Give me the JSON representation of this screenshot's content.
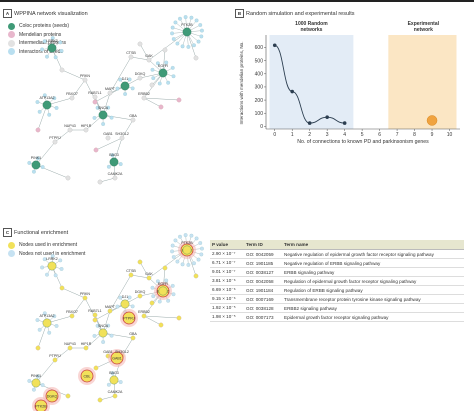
{
  "panelA": {
    "tag": "A",
    "title": "WPPINA network visualization",
    "legend": [
      {
        "label": "Coloc proteins (seeds)",
        "color": "#3f9a77"
      },
      {
        "label": "Mendelian proteins",
        "color": "#e8b7cc"
      },
      {
        "label": "Intermediate proteins",
        "color": "#e2e2e2"
      },
      {
        "label": "Interactors of seeds",
        "color": "#b9dff0"
      }
    ],
    "node_labels": [
      "PTK2B",
      "EGFR",
      "LRRK2",
      "SNCA",
      "ATP13A2",
      "DJ1",
      "PINK1",
      "BAG3",
      "CTSB",
      "GAK",
      "DGKQ",
      "ERBB2",
      "MAPT",
      "PRKN",
      "FBXO7",
      "RAB7L1",
      "GBA",
      "SH3GL2",
      "GAB1",
      "HIP1R",
      "NUP43",
      "PTPRJ",
      "CAMK2A"
    ]
  },
  "panelB": {
    "tag": "B",
    "title": "Random simulation and experimental results",
    "chart_data": {
      "type": "line",
      "xlabel": "No. of connections to known PD and parkinsonism genes",
      "ylabel": "Interactions with mendelian proteins, No.",
      "xlim": [
        0,
        10
      ],
      "ylim": [
        0,
        650
      ],
      "xticks": [
        "0",
        "1",
        "2",
        "3",
        "4",
        "5",
        "6",
        "7",
        "8",
        "9",
        "10"
      ],
      "yticks": [
        "0",
        "100",
        "200",
        "300",
        "400",
        "500",
        "600"
      ],
      "random_band_label": "1000 Random networks",
      "experimental_band_label": "Experimental network",
      "random_band": [
        -0.3,
        4.5
      ],
      "experimental_band": [
        6.5,
        10.4
      ],
      "series": [
        {
          "x": [
            0,
            1,
            2,
            3,
            4
          ],
          "y": [
            617,
            265,
            25,
            70,
            25
          ]
        }
      ],
      "experimental_point": {
        "x": 9,
        "y": 45
      },
      "random_color": "#e3ecf6",
      "experimental_color": "#fbe6c4"
    }
  },
  "panelC": {
    "tag": "C",
    "title": "Functional enrichment",
    "legend": [
      {
        "label": "Nodes used in enrichment",
        "color": "#f1e15a"
      },
      {
        "label": "Nodes not used in enrichment",
        "color": "#c6e2f2"
      }
    ],
    "highlight_labels": [
      "EGFR",
      "ERBB2",
      "PTPRJ",
      "GAB1",
      "CBL",
      "DGKQ",
      "PTK2B"
    ]
  },
  "table": {
    "headers": [
      "P value",
      "Term ID",
      "Term name"
    ],
    "rows": [
      [
        "2.90 × 10⁻⁷",
        "GO: 0042059",
        "Negative regulation of epidermal growth factor receptor signaling pathway"
      ],
      [
        "6.71 × 10⁻⁷",
        "GO: 1901185",
        "Negative regulation of ERBB signaling pathway"
      ],
      [
        "9.01 × 10⁻⁷",
        "GO: 0038127",
        "ERBB signaling pathway"
      ],
      [
        "3.81 × 10⁻⁶",
        "GO: 0042058",
        "Regulation of epidermal growth factor receptor signaling pathway"
      ],
      [
        "6.69 × 10⁻⁶",
        "GO: 1901184",
        "Regulation of ERBB signaling pathway"
      ],
      [
        "9.15 × 10⁻⁶",
        "GO: 0007169",
        "Transmembrane receptor protein tyrosine kinase signaling pathway"
      ],
      [
        "1.92 × 10⁻⁵",
        "GO: 0038128",
        "ERBB2 signaling pathway"
      ],
      [
        "1.98 × 10⁻⁵",
        "GO: 0007173",
        "Epidermal growth factor receptor signaling pathway"
      ]
    ]
  }
}
